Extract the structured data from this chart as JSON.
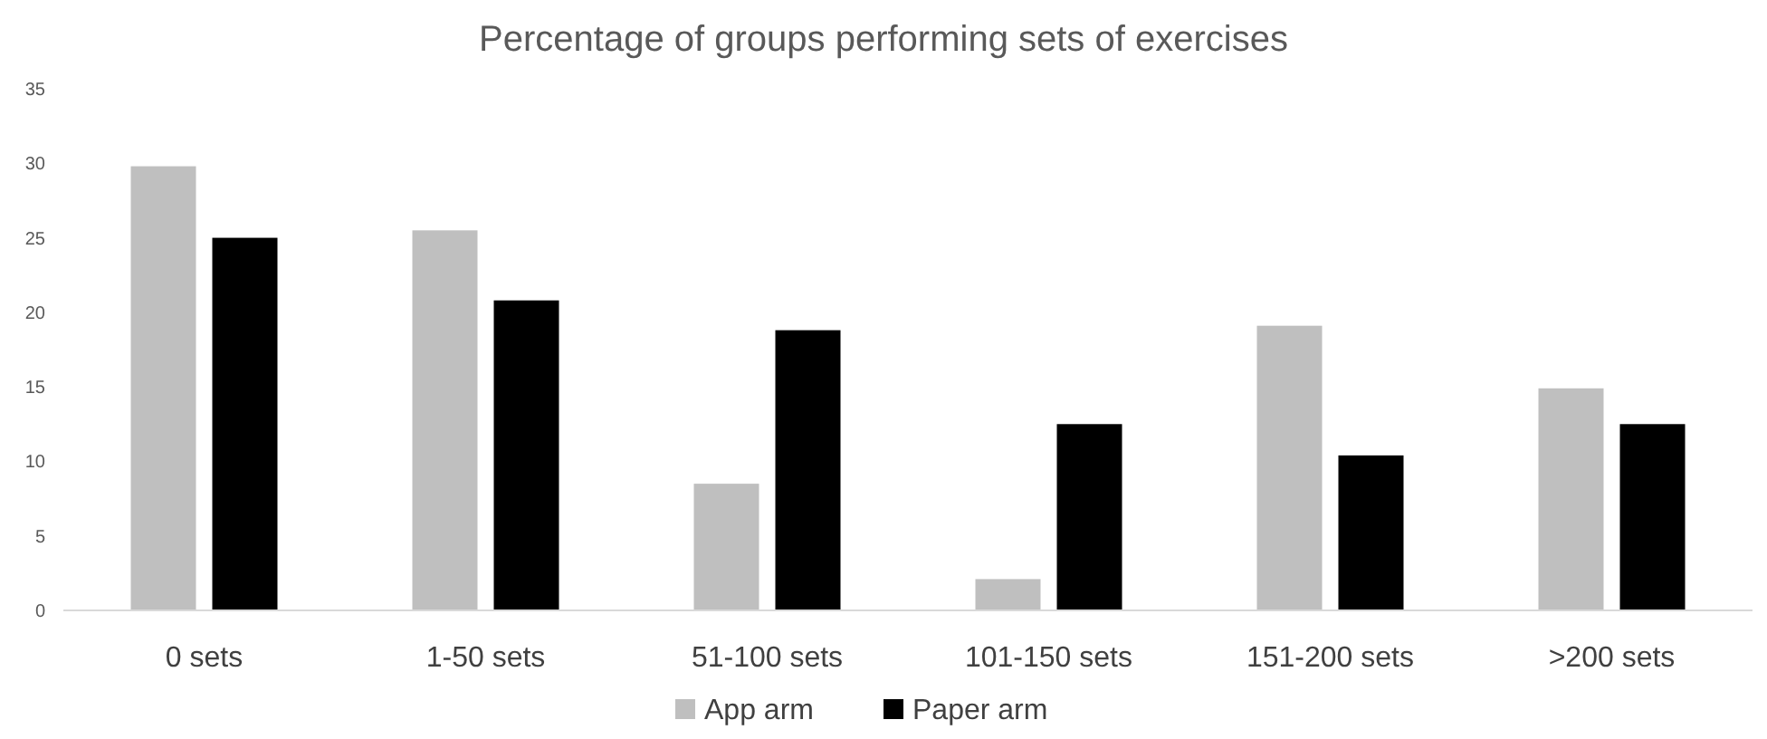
{
  "chart_data": {
    "type": "bar",
    "title": "Percentage of groups performing sets of exercises",
    "categories": [
      "0 sets",
      "1-50 sets",
      "51-100 sets",
      "101-150 sets",
      "151-200 sets",
      ">200 sets"
    ],
    "series": [
      {
        "name": "App arm",
        "color": "#bfbfbf",
        "values": [
          29.8,
          25.5,
          8.5,
          2.1,
          19.1,
          14.9
        ]
      },
      {
        "name": "Paper arm",
        "color": "#000000",
        "values": [
          25,
          20.8,
          18.8,
          12.5,
          10.4,
          12.5
        ]
      }
    ],
    "ylim": [
      0,
      35
    ],
    "yticks": [
      0,
      5,
      10,
      15,
      20,
      25,
      30,
      35
    ],
    "grid": false,
    "legend": "bottom"
  }
}
